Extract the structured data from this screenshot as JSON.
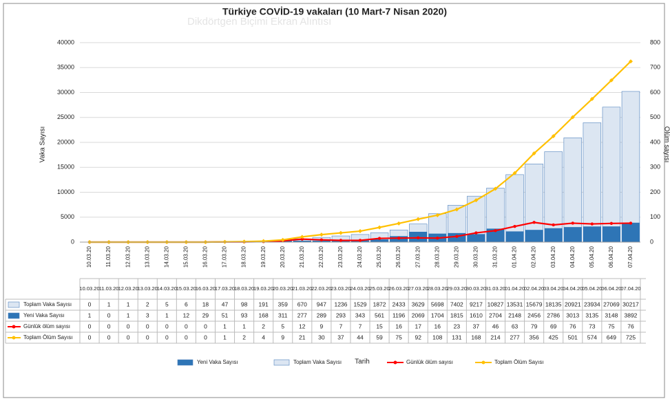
{
  "chart_data": {
    "type": "combo",
    "title": "Türkiye COVİD-19 vakaları (10 Mart-7 Nisan 2020)",
    "watermark": "Dikdörtgen Biçimi Ekran Alıntısı",
    "y_label": "Vaka Sayısı",
    "y2_label": "Ölüm sayısı",
    "x_label": "Tarih",
    "categories": [
      "10.03.20",
      "11.03.20",
      "12.03.20",
      "13.03.20",
      "14.03.20",
      "15.03.20",
      "16.03.20",
      "17.03.20",
      "18.03.20",
      "19.03.20",
      "20.03.20",
      "21.03.20",
      "22.03.20",
      "23.03.20",
      "24.03.20",
      "25.03.20",
      "26.03.20",
      "27.03.20",
      "28.03.20",
      "29.03.20",
      "30.03.20",
      "31.03.20",
      "01.04.20",
      "02.04.20",
      "03.04.20",
      "04.04.20",
      "05.04.20",
      "06.04.20",
      "07.04.20"
    ],
    "ylim": [
      0,
      40000
    ],
    "yticks": [
      0,
      5000,
      10000,
      15000,
      20000,
      25000,
      30000,
      35000,
      40000
    ],
    "y2lim": [
      0,
      800
    ],
    "y2ticks": [
      0,
      100,
      200,
      300,
      400,
      500,
      600,
      700,
      800
    ],
    "grid": true,
    "legend": "bottom",
    "series": [
      {
        "name": "Toplam Vaka Sayısı",
        "type": "bar",
        "color": "#dce6f2",
        "values": [
          0,
          1,
          1,
          2,
          5,
          6,
          18,
          47,
          98,
          191,
          359,
          670,
          947,
          1236,
          1529,
          1872,
          2433,
          3629,
          5698,
          7402,
          9217,
          10827,
          13531,
          15679,
          18135,
          20921,
          23934,
          27069,
          30217
        ]
      },
      {
        "name": "Yeni Vaka Sayısı",
        "type": "bar",
        "color": "#2e75b6",
        "values": [
          1,
          0,
          1,
          3,
          1,
          12,
          29,
          51,
          93,
          168,
          311,
          277,
          289,
          293,
          343,
          561,
          1196,
          2069,
          1704,
          1815,
          1610,
          2704,
          2148,
          2456,
          2786,
          3013,
          3135,
          3148,
          3892
        ]
      },
      {
        "name": "Günlük ölüm sayısı",
        "type": "line",
        "axis": "y2",
        "color": "#ff0000",
        "values": [
          0,
          0,
          0,
          0,
          0,
          0,
          0,
          1,
          1,
          2,
          5,
          12,
          9,
          7,
          7,
          15,
          16,
          17,
          16,
          23,
          37,
          46,
          63,
          79,
          69,
          76,
          73,
          75,
          76
        ]
      },
      {
        "name": "Toplam Ölüm Sayısı",
        "type": "line",
        "axis": "y2",
        "color": "#ffc000",
        "values": [
          0,
          0,
          0,
          0,
          0,
          0,
          0,
          1,
          2,
          4,
          9,
          21,
          30,
          37,
          44,
          59,
          75,
          92,
          108,
          131,
          168,
          214,
          277,
          356,
          425,
          501,
          574,
          649,
          725
        ]
      }
    ]
  }
}
